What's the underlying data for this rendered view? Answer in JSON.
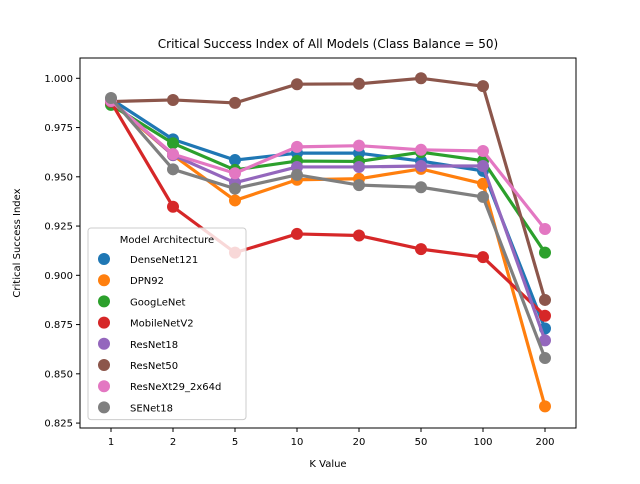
{
  "chart_data": {
    "type": "line",
    "title": "Critical Success Index of All Models (Class Balance = 50)",
    "xlabel": "K Value",
    "ylabel": "Critical Success Index",
    "categories": [
      "1",
      "2",
      "5",
      "10",
      "20",
      "50",
      "100",
      "200"
    ],
    "ylim": [
      0.8225,
      1.0103
    ],
    "yticks": [
      "0.825",
      "0.850",
      "0.875",
      "0.900",
      "0.925",
      "0.950",
      "0.975",
      "1.000"
    ],
    "ytick_values": [
      0.825,
      0.85,
      0.875,
      0.9,
      0.925,
      0.95,
      0.975,
      1.0
    ],
    "grid": false,
    "legend": {
      "title": "Model Architecture",
      "placement": "lower-left"
    },
    "series": [
      {
        "name": "DenseNet121",
        "color": "#1f77b4",
        "values": [
          0.9895,
          0.969,
          0.9585,
          0.962,
          0.962,
          0.958,
          0.953,
          0.873
        ]
      },
      {
        "name": "DPN92",
        "color": "#ff7f0e",
        "values": [
          0.988,
          0.961,
          0.938,
          0.9485,
          0.949,
          0.954,
          0.9465,
          0.8335
        ]
      },
      {
        "name": "GoogLeNet",
        "color": "#2ca02c",
        "values": [
          0.9865,
          0.967,
          0.9535,
          0.958,
          0.9578,
          0.9625,
          0.9582,
          0.9115
        ]
      },
      {
        "name": "MobileNetV2",
        "color": "#d62728",
        "values": [
          0.988,
          0.9348,
          0.9115,
          0.921,
          0.9202,
          0.9133,
          0.9092,
          0.8795
        ]
      },
      {
        "name": "ResNet18",
        "color": "#9467bd",
        "values": [
          0.9888,
          0.961,
          0.947,
          0.955,
          0.955,
          0.9555,
          0.9555,
          0.867
        ]
      },
      {
        "name": "ResNet50",
        "color": "#8c564b",
        "values": [
          0.9882,
          0.989,
          0.9875,
          0.997,
          0.9972,
          1.0,
          0.996,
          0.8875
        ]
      },
      {
        "name": "ResNeXt29_2x64d",
        "color": "#e377c2",
        "values": [
          0.9885,
          0.9615,
          0.9518,
          0.9652,
          0.9658,
          0.9637,
          0.9631,
          0.9235
        ]
      },
      {
        "name": "SENet18",
        "color": "#7f7f7f",
        "values": [
          0.99,
          0.9538,
          0.944,
          0.951,
          0.9458,
          0.9447,
          0.9398,
          0.858
        ]
      }
    ]
  }
}
